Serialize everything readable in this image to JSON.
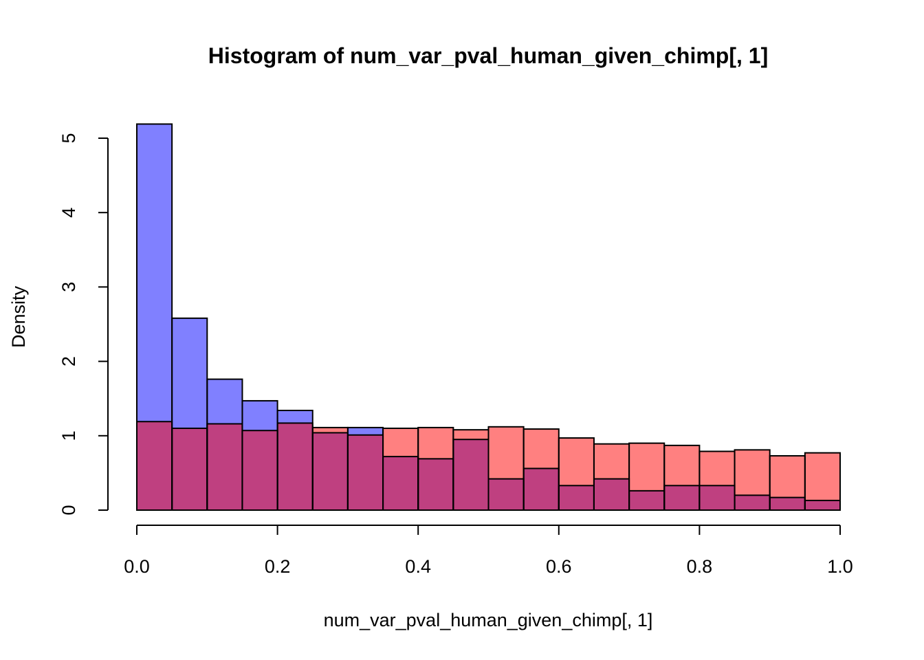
{
  "chart_data": {
    "type": "bar",
    "title": "Histogram of num_var_pval_human_given_chimp[, 1]",
    "xlabel": "num_var_pval_human_given_chimp[, 1]",
    "ylabel": "Density",
    "xlim": [
      0,
      1
    ],
    "ylim": [
      0,
      5.2
    ],
    "bin_width": 0.05,
    "bin_starts": [
      0.0,
      0.05,
      0.1,
      0.15,
      0.2,
      0.25,
      0.3,
      0.35,
      0.4,
      0.45,
      0.5,
      0.55,
      0.6,
      0.65,
      0.7,
      0.75,
      0.8,
      0.85,
      0.9,
      0.95
    ],
    "x_ticks": [
      0,
      0.2,
      0.4,
      0.6,
      0.8,
      1.0
    ],
    "x_tick_labels": [
      "0.0",
      "0.2",
      "0.4",
      "0.6",
      "0.8",
      "1.0"
    ],
    "y_ticks": [
      0,
      1,
      2,
      3,
      4,
      5
    ],
    "y_tick_labels": [
      "0",
      "1",
      "2",
      "3",
      "4",
      "5"
    ],
    "grid": false,
    "series": [
      {
        "color": "#8080ff",
        "values": [
          5.19,
          2.58,
          1.76,
          1.47,
          1.34,
          1.04,
          1.11,
          0.72,
          0.69,
          0.95,
          0.42,
          0.56,
          0.33,
          0.42,
          0.26,
          0.33,
          0.33,
          0.2,
          0.17,
          0.13
        ]
      },
      {
        "color": "#ff8080",
        "values": [
          1.19,
          1.1,
          1.16,
          1.07,
          1.17,
          1.11,
          1.01,
          1.1,
          1.11,
          1.08,
          1.12,
          1.09,
          0.97,
          0.89,
          0.9,
          0.87,
          0.79,
          0.81,
          0.73,
          0.77
        ]
      }
    ],
    "overlap_color": "#bf4080"
  }
}
